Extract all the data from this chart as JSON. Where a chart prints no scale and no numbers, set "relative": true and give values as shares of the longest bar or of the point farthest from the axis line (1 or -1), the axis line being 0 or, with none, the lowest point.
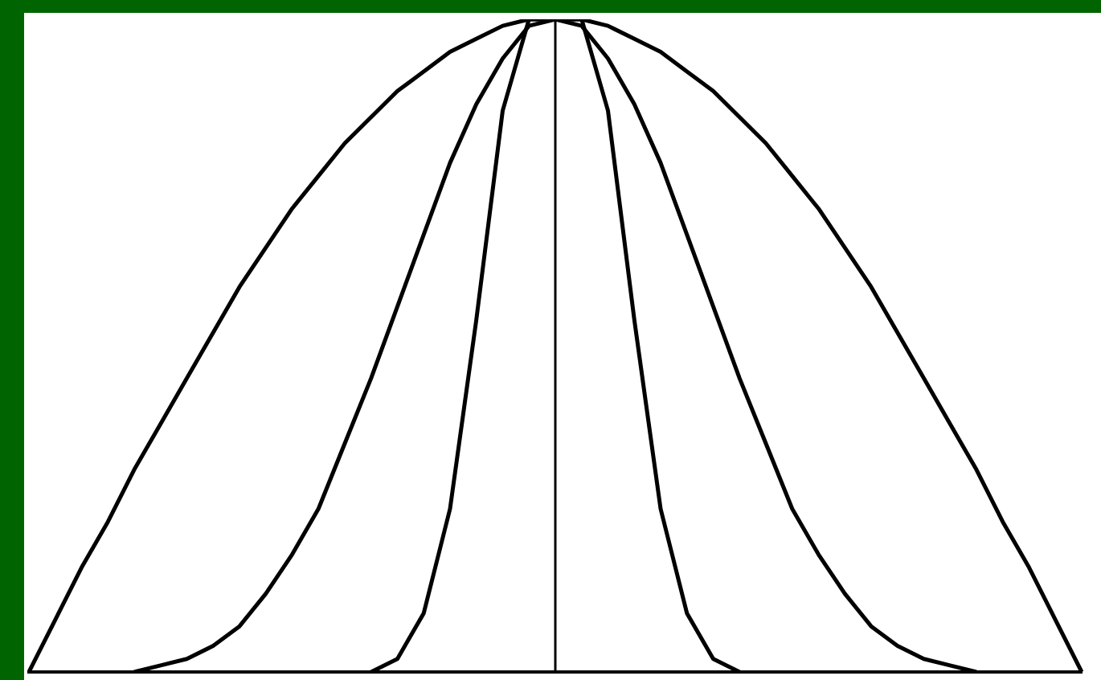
{
  "chart_data": {
    "type": "line",
    "relative": true,
    "grid": false,
    "legend": false,
    "marker": "none",
    "line_style": "solid",
    "categories": [
      null,
      null,
      null,
      null,
      null,
      null,
      null,
      null,
      null,
      null,
      null,
      null,
      null,
      null,
      null,
      null,
      null,
      null,
      null,
      null,
      null,
      null,
      null,
      null,
      null,
      null,
      null,
      null,
      null,
      null,
      null,
      null,
      null,
      null,
      null,
      null,
      null,
      null,
      null,
      null,
      null
    ],
    "series": [
      {
        "color": "#000000",
        "values": [
          0,
          0.08,
          0.16,
          0.23,
          0.31,
          0.38,
          0.45,
          0.52,
          0.59,
          0.65,
          0.71,
          0.76,
          0.81,
          0.85,
          0.89,
          0.92,
          0.95,
          0.97,
          0.99,
          1,
          1,
          1,
          0.99,
          0.97,
          0.95,
          0.92,
          0.89,
          0.85,
          0.81,
          0.76,
          0.71,
          0.65,
          0.59,
          0.52,
          0.45,
          0.38,
          0.31,
          0.23,
          0.16,
          0.08,
          0
        ]
      },
      {
        "color": "#000000",
        "values": [
          null,
          null,
          null,
          null,
          0,
          0.01,
          0.02,
          0.04,
          0.07,
          0.12,
          0.18,
          0.25,
          0.35,
          0.45,
          0.56,
          0.67,
          0.78,
          0.87,
          0.94,
          0.99,
          1,
          0.99,
          0.94,
          0.87,
          0.78,
          0.67,
          0.56,
          0.45,
          0.35,
          0.25,
          0.18,
          0.12,
          0.07,
          0.04,
          0.02,
          0.01,
          0,
          null,
          null,
          null,
          null
        ]
      },
      {
        "color": "#000000",
        "values": [
          null,
          null,
          null,
          null,
          null,
          null,
          null,
          null,
          null,
          null,
          null,
          null,
          null,
          0,
          0.02,
          0.09,
          0.25,
          0.54,
          0.86,
          1,
          1,
          1,
          0.86,
          0.54,
          0.25,
          0.09,
          0.02,
          0,
          null,
          null,
          null,
          null,
          null,
          null,
          null,
          null,
          null,
          null,
          null,
          null,
          null
        ]
      }
    ],
    "ref_lines": [
      {
        "axis": "x",
        "color": "#000000"
      }
    ]
  }
}
